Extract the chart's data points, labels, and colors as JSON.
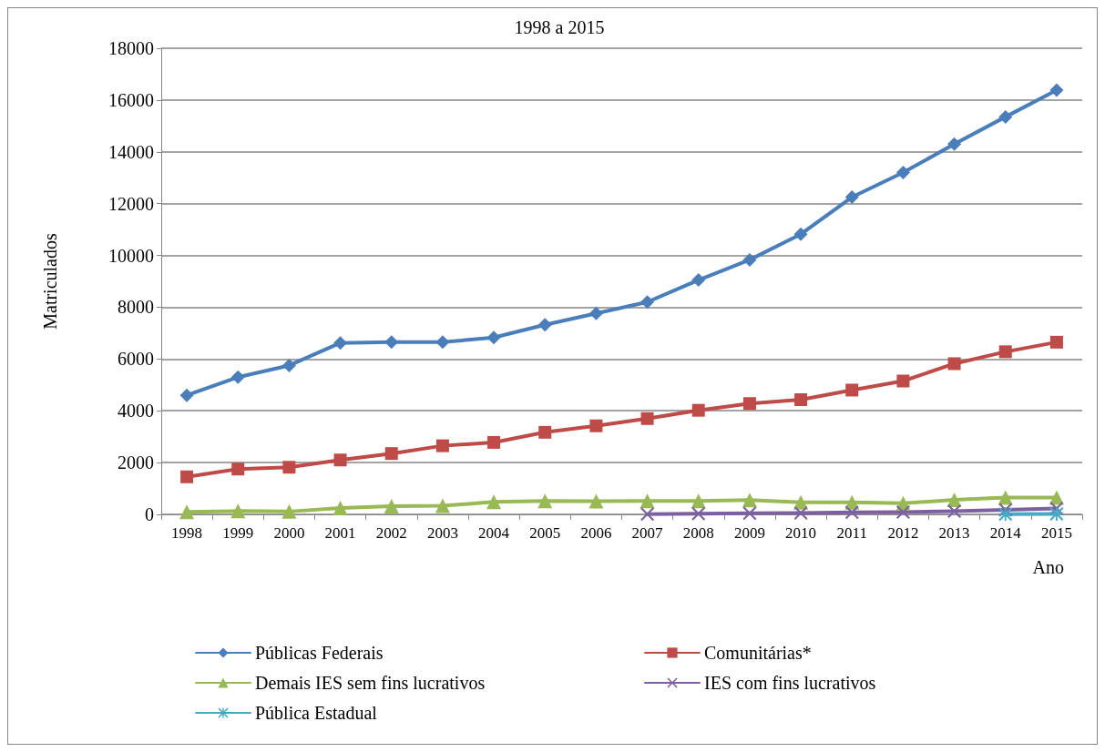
{
  "chart_data": {
    "type": "line",
    "title": "1998 a 2015",
    "xlabel": "Ano",
    "ylabel": "Matriculados",
    "categories": [
      "1998",
      "1999",
      "2000",
      "2001",
      "2002",
      "2003",
      "2004",
      "2005",
      "2006",
      "2007",
      "2008",
      "2009",
      "2010",
      "2011",
      "2012",
      "2013",
      "2014",
      "2015"
    ],
    "ylim": [
      0,
      18000
    ],
    "yticks": [
      0,
      2000,
      4000,
      6000,
      8000,
      10000,
      12000,
      14000,
      16000,
      18000
    ],
    "grid": "y",
    "legend": "bottom",
    "line_style": "solid",
    "series": [
      {
        "name": "Públicas Federais",
        "color": "#4a7ebb",
        "marker": "diamond",
        "values": [
          4600,
          5300,
          5750,
          6620,
          6650,
          6650,
          6830,
          7320,
          7760,
          8200,
          9050,
          9830,
          10820,
          12250,
          13200,
          14300,
          15350,
          16380
        ]
      },
      {
        "name": "Comunitárias*",
        "color": "#be4b48",
        "marker": "square",
        "values": [
          1450,
          1750,
          1820,
          2100,
          2350,
          2650,
          2780,
          3170,
          3420,
          3700,
          4020,
          4280,
          4430,
          4800,
          5150,
          5820,
          6280,
          6650
        ]
      },
      {
        "name": "Demais IES sem fins lucrativos",
        "color": "#98b954",
        "marker": "triangle",
        "values": [
          100,
          130,
          110,
          250,
          320,
          330,
          480,
          520,
          510,
          520,
          520,
          550,
          470,
          470,
          430,
          560,
          650,
          650
        ]
      },
      {
        "name": "IES com fins lucrativos",
        "color": "#7d60a0",
        "marker": "cross",
        "values": [
          null,
          null,
          null,
          null,
          null,
          null,
          null,
          null,
          null,
          10,
          30,
          40,
          50,
          80,
          90,
          120,
          180,
          230
        ]
      },
      {
        "name": "Pública Estadual",
        "color": "#46aac5",
        "marker": "star",
        "values": [
          null,
          null,
          null,
          null,
          null,
          null,
          null,
          null,
          null,
          null,
          null,
          null,
          null,
          null,
          null,
          null,
          10,
          20
        ]
      }
    ]
  }
}
